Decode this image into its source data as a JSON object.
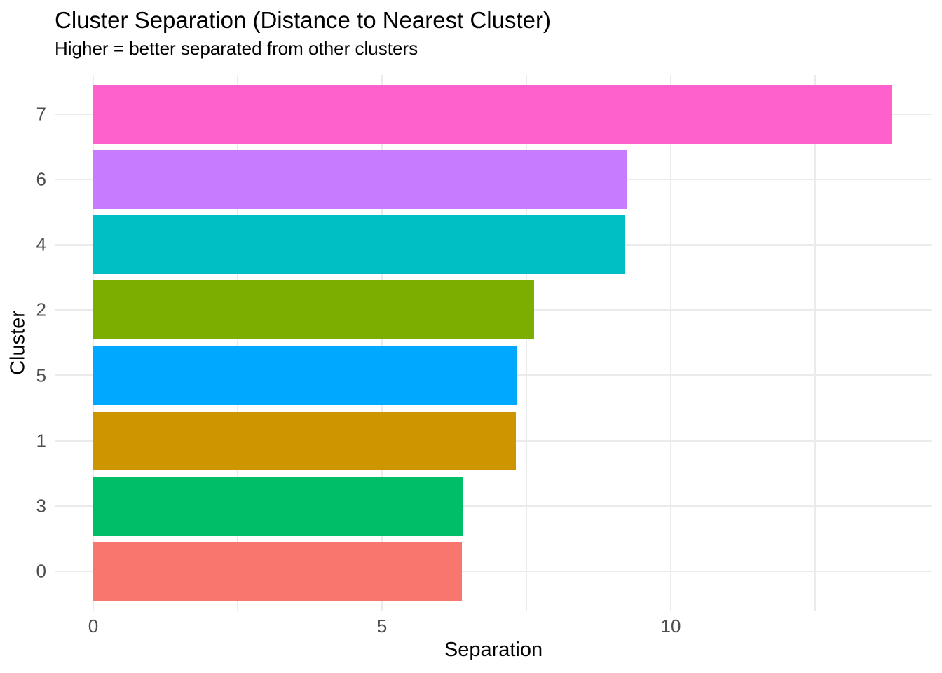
{
  "chart": {
    "title": "Cluster Separation (Distance to Nearest Cluster)",
    "subtitle": "Higher = better separated from other clusters",
    "xlabel": "Separation",
    "ylabel": "Cluster"
  },
  "chart_data": {
    "type": "bar",
    "orientation": "horizontal",
    "title": "Cluster Separation (Distance to Nearest Cluster)",
    "subtitle": "Higher = better separated from other clusters",
    "xlabel": "Separation",
    "ylabel": "Cluster",
    "categories": [
      "7",
      "6",
      "4",
      "2",
      "5",
      "1",
      "3",
      "0"
    ],
    "values": [
      13.82,
      9.25,
      9.21,
      7.63,
      7.33,
      7.32,
      6.39,
      6.38
    ],
    "bar_colors": [
      "#FF61CC",
      "#C77CFF",
      "#00BFC4",
      "#7CAE00",
      "#00A9FF",
      "#CD9600",
      "#00BE67",
      "#F8766D"
    ],
    "xlim": [
      0,
      14.53
    ],
    "x_major_ticks": [
      0,
      5,
      10
    ],
    "x_minor_ticks": [
      2.5,
      7.5,
      12.5
    ],
    "grid": true,
    "legend_position": "none",
    "background_color": "#FFFFFF",
    "grid_color": "#EBEBEB",
    "tick_label_color": "#4D4D4D",
    "text_color": "#000000"
  }
}
